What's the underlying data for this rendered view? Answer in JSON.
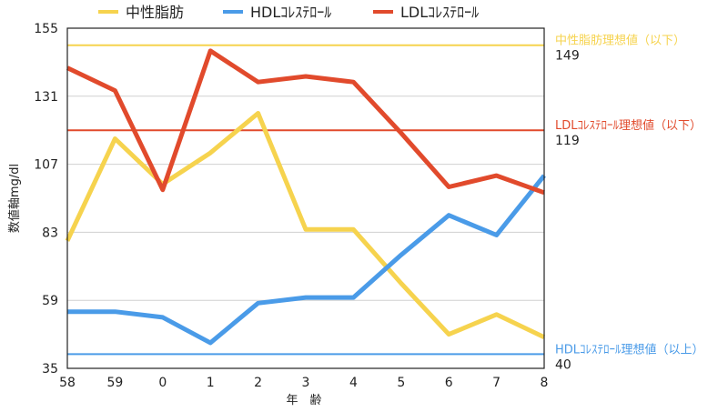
{
  "chart_data": {
    "type": "line",
    "categories": [
      "58",
      "59",
      "0",
      "1",
      "2",
      "3",
      "4",
      "5",
      "6",
      "7",
      "8"
    ],
    "xlabel": "年　齢",
    "ylabel": "数値軸mg/dl",
    "ylim": [
      35,
      155
    ],
    "yticks": [
      "35",
      "59",
      "83",
      "107",
      "131",
      "155"
    ],
    "grid": true,
    "legend_position": "top",
    "series": [
      {
        "name": "中性脂肪",
        "color": "#f6d34e",
        "values": [
          80,
          116,
          100,
          111,
          125,
          84,
          84,
          65,
          47,
          54,
          46
        ]
      },
      {
        "name": "HDLｺﾚｽﾃﾛｰﾙ",
        "color": "#4a9be8",
        "values": [
          55,
          55,
          53,
          44,
          58,
          60,
          60,
          75,
          89,
          82,
          103
        ]
      },
      {
        "name": "LDLｺﾚｽﾃﾛｰﾙ",
        "color": "#e14a2c",
        "values": [
          141,
          133,
          98,
          147,
          136,
          138,
          136,
          118,
          99,
          103,
          97
        ]
      }
    ],
    "reference_lines": [
      {
        "label": "中性脂肪理想値（以下）",
        "value": 149,
        "value_text": "149",
        "color": "#f6d34e"
      },
      {
        "label": "LDLｺﾚｽﾃﾛｰﾙ理想値（以下）",
        "value": 119,
        "value_text": "119",
        "color": "#e14a2c"
      },
      {
        "label": "HDLｺﾚｽﾃﾛｰﾙ理想値（以上）",
        "value": 40,
        "value_text": "40",
        "color": "#4a9be8"
      }
    ]
  }
}
